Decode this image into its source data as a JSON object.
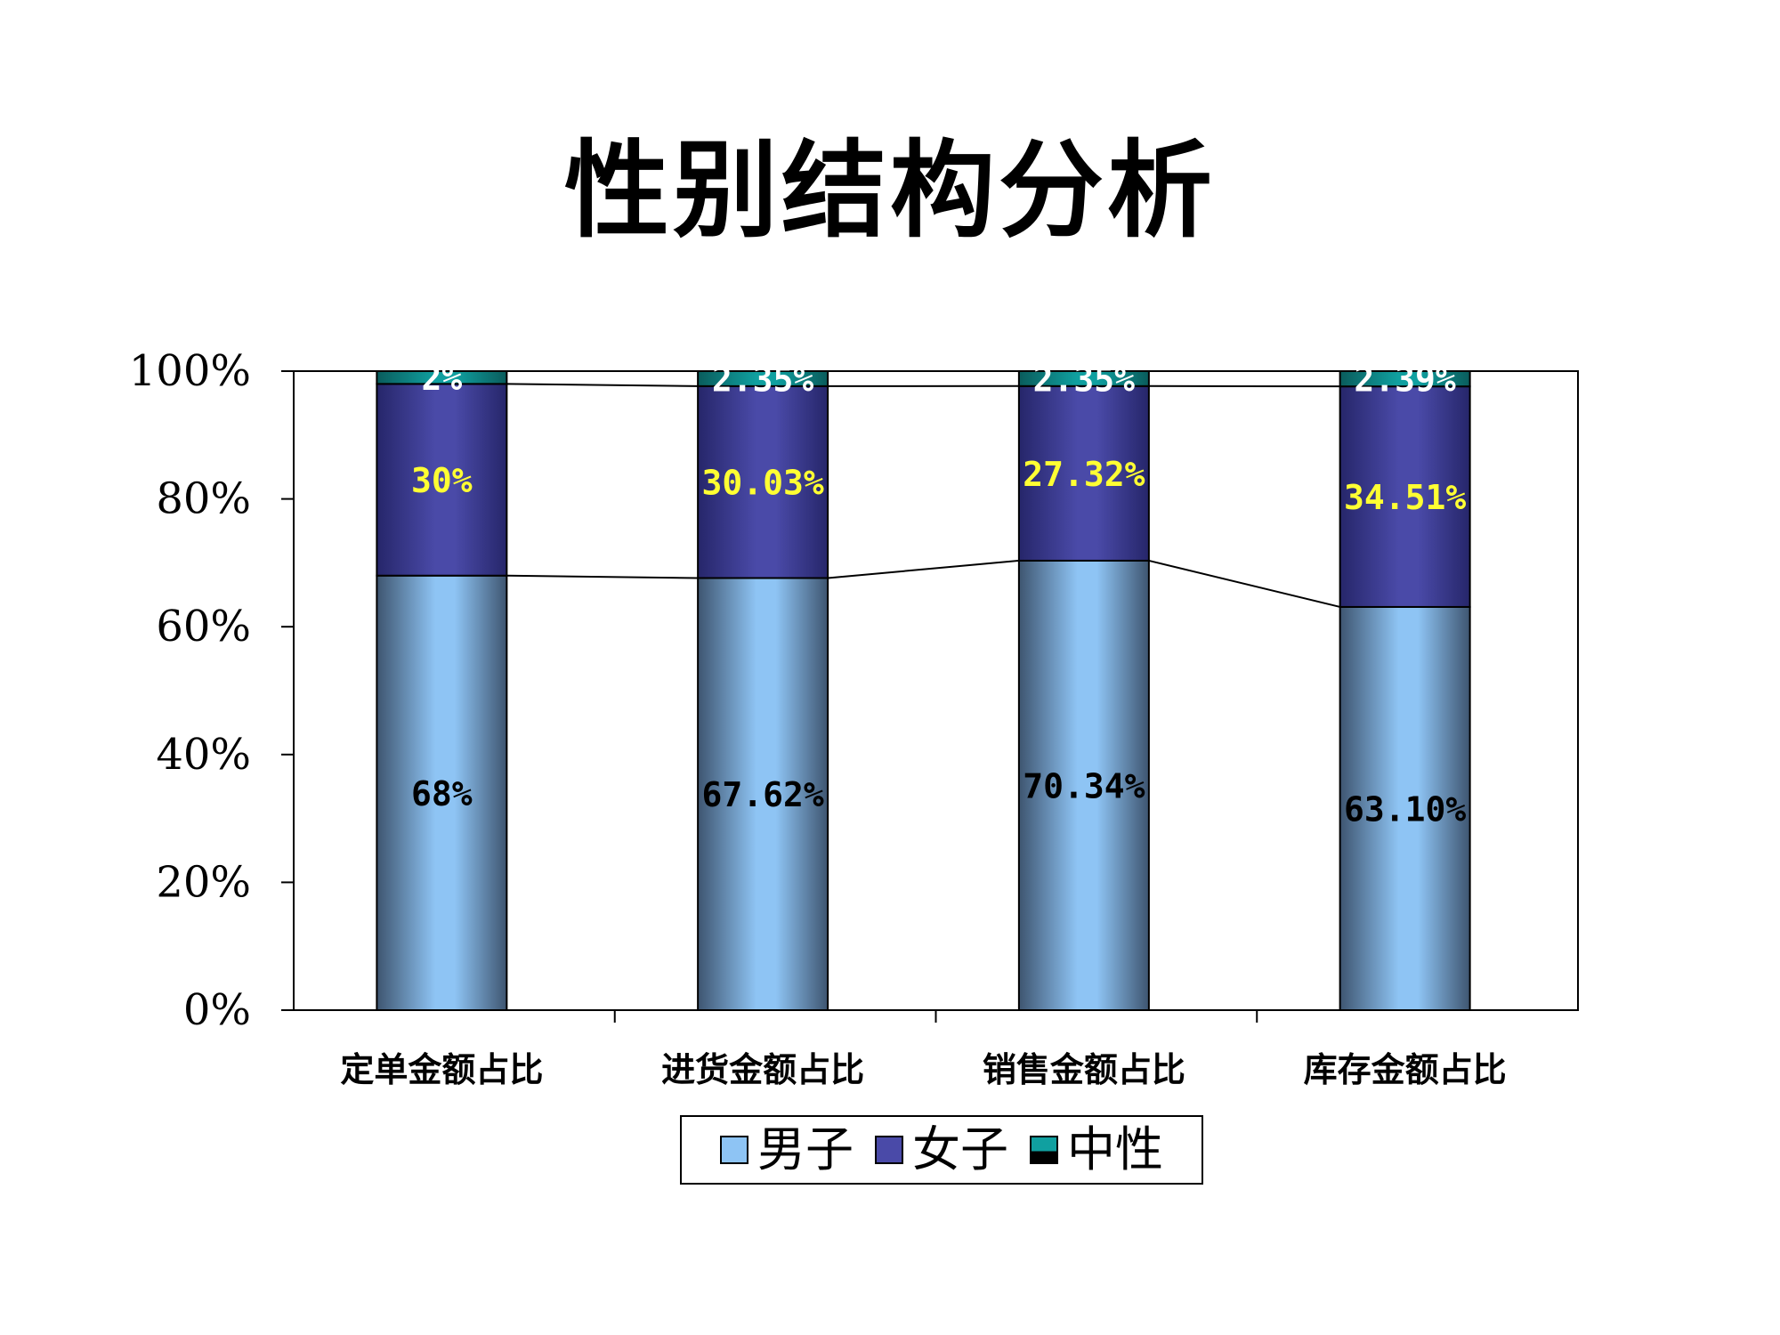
{
  "title": "性别结构分析",
  "legend": [
    {
      "label": "男子",
      "color": "#8EC4F4"
    },
    {
      "label": "女子",
      "color": "#4A4AA8"
    },
    {
      "label": "中性",
      "color": "#10A0A0"
    }
  ],
  "chart_data": {
    "type": "bar",
    "stacked": "percent",
    "categories": [
      "定单金额占比",
      "进货金额占比",
      "销售金额占比",
      "库存金额占比"
    ],
    "series": [
      {
        "name": "男子",
        "values": [
          68,
          67.62,
          70.34,
          63.1
        ],
        "labels": [
          "68%",
          "67.62%",
          "70.34%",
          "63.10%"
        ],
        "color": "#8EC4F4",
        "label_color": "#000000"
      },
      {
        "name": "女子",
        "values": [
          30,
          30.03,
          27.32,
          34.51
        ],
        "labels": [
          "30%",
          "30.03%",
          "27.32%",
          "34.51%"
        ],
        "color": "#4A4AA8",
        "label_color": "#FFFF33"
      },
      {
        "name": "中性",
        "values": [
          2,
          2.35,
          2.35,
          2.39
        ],
        "labels": [
          "2%",
          "2.35%",
          "2.35%",
          "2.39%"
        ],
        "color": "#10A0A0",
        "label_color": "#FFFFFF"
      }
    ],
    "y_ticks": [
      "0%",
      "20%",
      "40%",
      "60%",
      "80%",
      "100%"
    ],
    "ylim": [
      0,
      100
    ],
    "series_lines": true,
    "grid": false,
    "legend_position": "bottom"
  }
}
